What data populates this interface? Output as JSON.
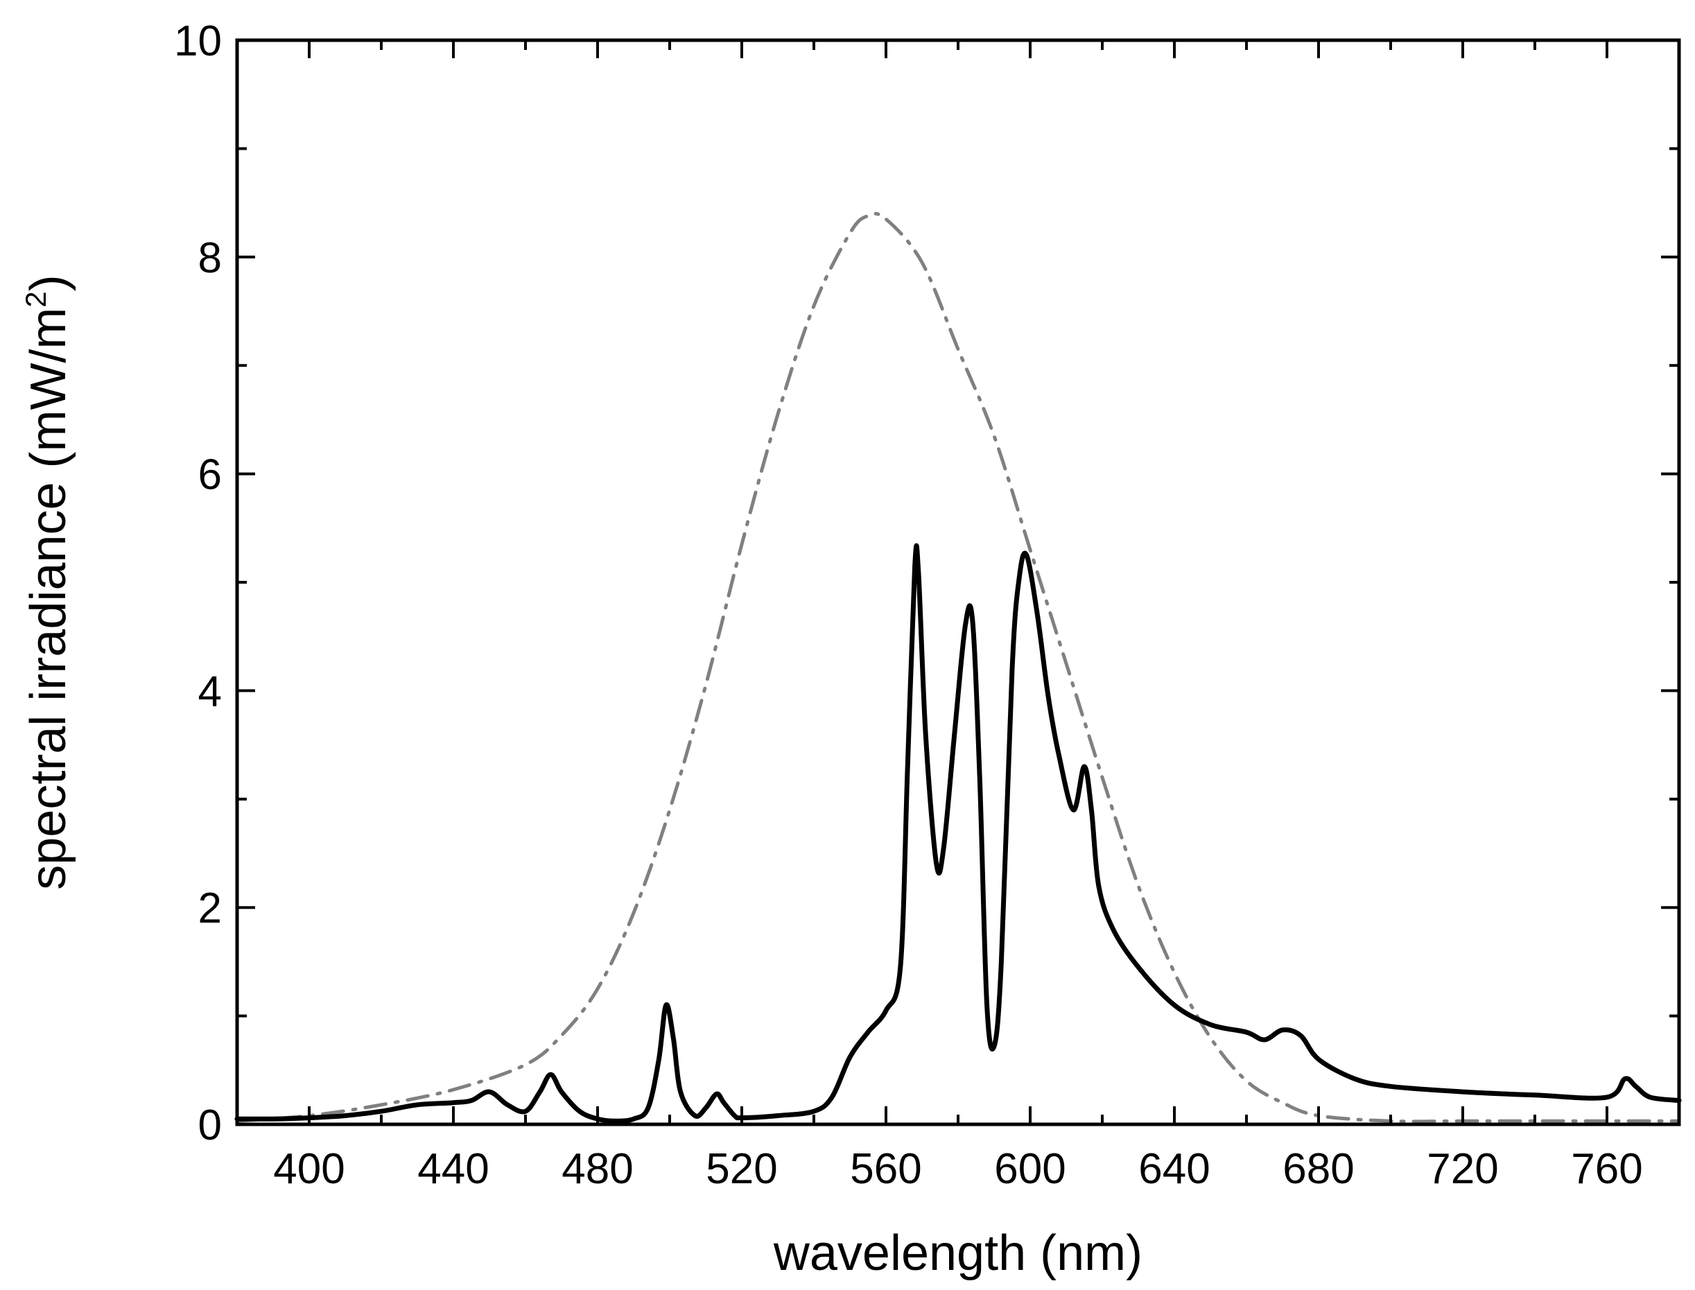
{
  "chart_data": {
    "type": "line",
    "title": "",
    "xlabel": "wavelength (nm)",
    "ylabel_main": "spectral irradiance (mW/m",
    "ylabel_sup": "2",
    "ylabel_close": ")",
    "xlim": [
      380,
      780
    ],
    "ylim": [
      0,
      10
    ],
    "xticks": [
      400,
      440,
      480,
      520,
      560,
      600,
      640,
      680,
      720,
      760
    ],
    "yticks": [
      0,
      2,
      4,
      6,
      8,
      10
    ],
    "grid": false,
    "legend": "none",
    "series": [
      {
        "id": "spectrum",
        "color": "#000000",
        "style": "solid",
        "x": [
          380,
          390,
          400,
          410,
          420,
          430,
          440,
          445,
          450,
          455,
          460,
          464,
          467,
          470,
          475,
          480,
          485,
          490,
          494,
          497,
          499,
          501,
          503,
          507,
          510,
          513,
          515,
          518,
          520,
          530,
          540,
          545,
          550,
          555,
          560,
          564,
          566,
          568,
          569,
          571,
          574,
          576,
          579,
          582,
          584,
          586,
          588,
          590,
          592,
          595,
          597,
          599,
          602,
          605,
          608,
          612,
          615,
          617,
          619,
          623,
          630,
          640,
          650,
          660,
          665,
          670,
          675,
          680,
          690,
          700,
          720,
          740,
          760,
          765,
          768,
          772,
          780
        ],
        "y": [
          0.05,
          0.05,
          0.06,
          0.08,
          0.12,
          0.18,
          0.2,
          0.22,
          0.3,
          0.18,
          0.12,
          0.3,
          0.46,
          0.3,
          0.12,
          0.05,
          0.03,
          0.05,
          0.15,
          0.6,
          1.1,
          0.8,
          0.3,
          0.08,
          0.15,
          0.28,
          0.2,
          0.08,
          0.06,
          0.08,
          0.12,
          0.25,
          0.62,
          0.85,
          1.05,
          1.45,
          3.3,
          5.15,
          5.1,
          3.6,
          2.4,
          2.55,
          3.6,
          4.6,
          4.65,
          3.2,
          1.1,
          0.72,
          1.5,
          4.2,
          5.05,
          5.25,
          4.7,
          3.95,
          3.4,
          2.9,
          3.3,
          2.9,
          2.2,
          1.8,
          1.45,
          1.1,
          0.92,
          0.85,
          0.78,
          0.87,
          0.82,
          0.6,
          0.42,
          0.35,
          0.3,
          0.27,
          0.25,
          0.42,
          0.35,
          0.25,
          0.22
        ]
      },
      {
        "id": "reference",
        "color": "#808080",
        "style": "dash-dot",
        "x": [
          380,
          400,
          420,
          440,
          460,
          470,
          480,
          490,
          500,
          510,
          520,
          530,
          540,
          550,
          555,
          560,
          570,
          580,
          590,
          600,
          610,
          620,
          630,
          640,
          650,
          660,
          670,
          680,
          700,
          720,
          740,
          760,
          780
        ],
        "y": [
          0.03,
          0.08,
          0.18,
          0.32,
          0.55,
          0.82,
          1.25,
          1.95,
          2.9,
          4.05,
          5.35,
          6.55,
          7.55,
          8.22,
          8.38,
          8.35,
          7.95,
          7.15,
          6.35,
          5.3,
          4.25,
          3.2,
          2.2,
          1.4,
          0.8,
          0.4,
          0.2,
          0.08,
          0.03,
          0.03,
          0.03,
          0.03,
          0.03
        ]
      }
    ]
  }
}
